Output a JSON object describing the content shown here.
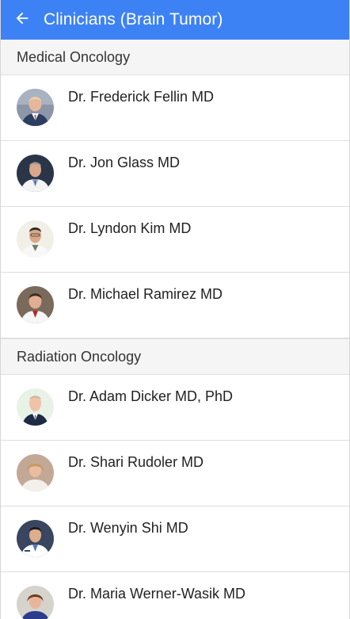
{
  "header": {
    "title": "Clinicians (Brain Tumor)",
    "color": "#3d82f5",
    "back_icon": "arrow-left-icon"
  },
  "sections": [
    {
      "title": "Medical Oncology",
      "clinicians": [
        {
          "name": "Dr. Frederick Fellin MD"
        },
        {
          "name": "Dr. Jon Glass MD"
        },
        {
          "name": "Dr. Lyndon Kim MD"
        },
        {
          "name": "Dr. Michael Ramirez MD"
        }
      ]
    },
    {
      "title": "Radiation Oncology",
      "clinicians": [
        {
          "name": "Dr. Adam Dicker MD, PhD"
        },
        {
          "name": "Dr. Shari Rudoler MD"
        },
        {
          "name": "Dr. Wenyin Shi MD"
        },
        {
          "name": "Dr. Maria Werner-Wasik MD"
        }
      ]
    }
  ]
}
